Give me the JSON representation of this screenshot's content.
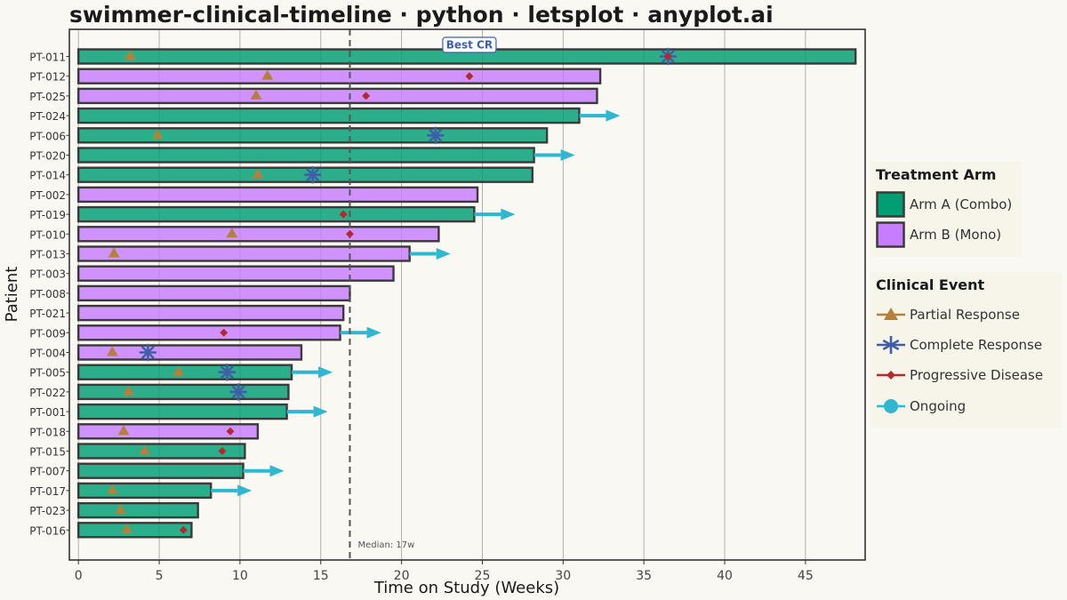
{
  "chart_title": "swimmer-clinical-timeline · python · letsplot · anyplot.ai",
  "chart_data": {
    "type": "bar",
    "orientation": "horizontal",
    "xlabel": "Time on Study (Weeks)",
    "ylabel": "Patient",
    "xlim": [
      0,
      48
    ],
    "xticks": [
      0,
      5,
      10,
      15,
      20,
      25,
      30,
      35,
      40,
      45
    ],
    "grid": true,
    "median": {
      "value": 16.8,
      "label": "Median: 17w"
    },
    "annotation": {
      "text": "Best CR",
      "x": 24.2,
      "patient": "PT-011"
    },
    "patients": [
      {
        "id": "PT-011",
        "arm": "A",
        "duration": 48.1,
        "ongoing": false,
        "pr": [
          3.2
        ],
        "cr": [
          36.5
        ],
        "pd": [
          36.5
        ]
      },
      {
        "id": "PT-012",
        "arm": "B",
        "duration": 32.3,
        "ongoing": false,
        "pr": [
          11.7
        ],
        "cr": [],
        "pd": [
          24.2
        ]
      },
      {
        "id": "PT-025",
        "arm": "B",
        "duration": 32.1,
        "ongoing": false,
        "pr": [
          11.0
        ],
        "cr": [],
        "pd": [
          17.8
        ]
      },
      {
        "id": "PT-024",
        "arm": "A",
        "duration": 31.0,
        "ongoing": true,
        "pr": [],
        "cr": [],
        "pd": []
      },
      {
        "id": "PT-006",
        "arm": "A",
        "duration": 29.0,
        "ongoing": false,
        "pr": [
          4.9
        ],
        "cr": [
          22.1
        ],
        "pd": []
      },
      {
        "id": "PT-020",
        "arm": "A",
        "duration": 28.2,
        "ongoing": true,
        "pr": [],
        "cr": [],
        "pd": []
      },
      {
        "id": "PT-014",
        "arm": "A",
        "duration": 28.1,
        "ongoing": false,
        "pr": [
          11.1
        ],
        "cr": [
          14.5
        ],
        "pd": []
      },
      {
        "id": "PT-002",
        "arm": "B",
        "duration": 24.7,
        "ongoing": false,
        "pr": [],
        "cr": [],
        "pd": []
      },
      {
        "id": "PT-019",
        "arm": "A",
        "duration": 24.5,
        "ongoing": true,
        "pr": [],
        "cr": [],
        "pd": [
          16.4
        ]
      },
      {
        "id": "PT-010",
        "arm": "B",
        "duration": 22.3,
        "ongoing": false,
        "pr": [
          9.5
        ],
        "cr": [],
        "pd": [
          16.8
        ]
      },
      {
        "id": "PT-013",
        "arm": "B",
        "duration": 20.5,
        "ongoing": true,
        "pr": [
          2.2
        ],
        "cr": [],
        "pd": []
      },
      {
        "id": "PT-003",
        "arm": "B",
        "duration": 19.5,
        "ongoing": false,
        "pr": [],
        "cr": [],
        "pd": []
      },
      {
        "id": "PT-008",
        "arm": "B",
        "duration": 16.8,
        "ongoing": false,
        "pr": [],
        "cr": [],
        "pd": []
      },
      {
        "id": "PT-021",
        "arm": "B",
        "duration": 16.4,
        "ongoing": false,
        "pr": [],
        "cr": [],
        "pd": []
      },
      {
        "id": "PT-009",
        "arm": "B",
        "duration": 16.2,
        "ongoing": true,
        "pr": [],
        "cr": [],
        "pd": [
          9.0
        ]
      },
      {
        "id": "PT-004",
        "arm": "B",
        "duration": 13.8,
        "ongoing": false,
        "pr": [
          2.1
        ],
        "cr": [
          4.3
        ],
        "pd": []
      },
      {
        "id": "PT-005",
        "arm": "A",
        "duration": 13.2,
        "ongoing": true,
        "pr": [
          6.2
        ],
        "cr": [
          9.2
        ],
        "pd": []
      },
      {
        "id": "PT-022",
        "arm": "A",
        "duration": 13.0,
        "ongoing": false,
        "pr": [
          3.1
        ],
        "cr": [
          9.9
        ],
        "pd": []
      },
      {
        "id": "PT-001",
        "arm": "A",
        "duration": 12.9,
        "ongoing": true,
        "pr": [],
        "cr": [],
        "pd": []
      },
      {
        "id": "PT-018",
        "arm": "B",
        "duration": 11.1,
        "ongoing": false,
        "pr": [
          2.8
        ],
        "cr": [],
        "pd": [
          9.4
        ]
      },
      {
        "id": "PT-015",
        "arm": "A",
        "duration": 10.3,
        "ongoing": false,
        "pr": [
          4.1
        ],
        "cr": [],
        "pd": [
          8.9
        ]
      },
      {
        "id": "PT-007",
        "arm": "A",
        "duration": 10.2,
        "ongoing": true,
        "pr": [],
        "cr": [],
        "pd": []
      },
      {
        "id": "PT-017",
        "arm": "A",
        "duration": 8.2,
        "ongoing": true,
        "pr": [
          2.1
        ],
        "cr": [],
        "pd": []
      },
      {
        "id": "PT-023",
        "arm": "A",
        "duration": 7.4,
        "ongoing": false,
        "pr": [
          2.6
        ],
        "cr": [],
        "pd": []
      },
      {
        "id": "PT-016",
        "arm": "A",
        "duration": 7.0,
        "ongoing": false,
        "pr": [
          3.0
        ],
        "cr": [],
        "pd": [
          6.5
        ]
      }
    ]
  },
  "legend": {
    "arm_title": "Treatment Arm",
    "arms": [
      {
        "key": "A",
        "label": "Arm A (Combo)",
        "color": "#009e73"
      },
      {
        "key": "B",
        "label": "Arm B (Mono)",
        "color": "#c77dff"
      }
    ],
    "event_title": "Clinical Event",
    "events": [
      {
        "key": "pr",
        "label": "Partial Response",
        "color": "#b5813a",
        "icon": "triangle-icon"
      },
      {
        "key": "cr",
        "label": "Complete Response",
        "color": "#3e5fa8",
        "icon": "asterisk-icon"
      },
      {
        "key": "pd",
        "label": "Progressive Disease",
        "color": "#b22a2a",
        "icon": "diamond-icon"
      },
      {
        "key": "ongoing",
        "label": "Ongoing",
        "color": "#2fb6d0",
        "icon": "circle-icon"
      }
    ]
  }
}
